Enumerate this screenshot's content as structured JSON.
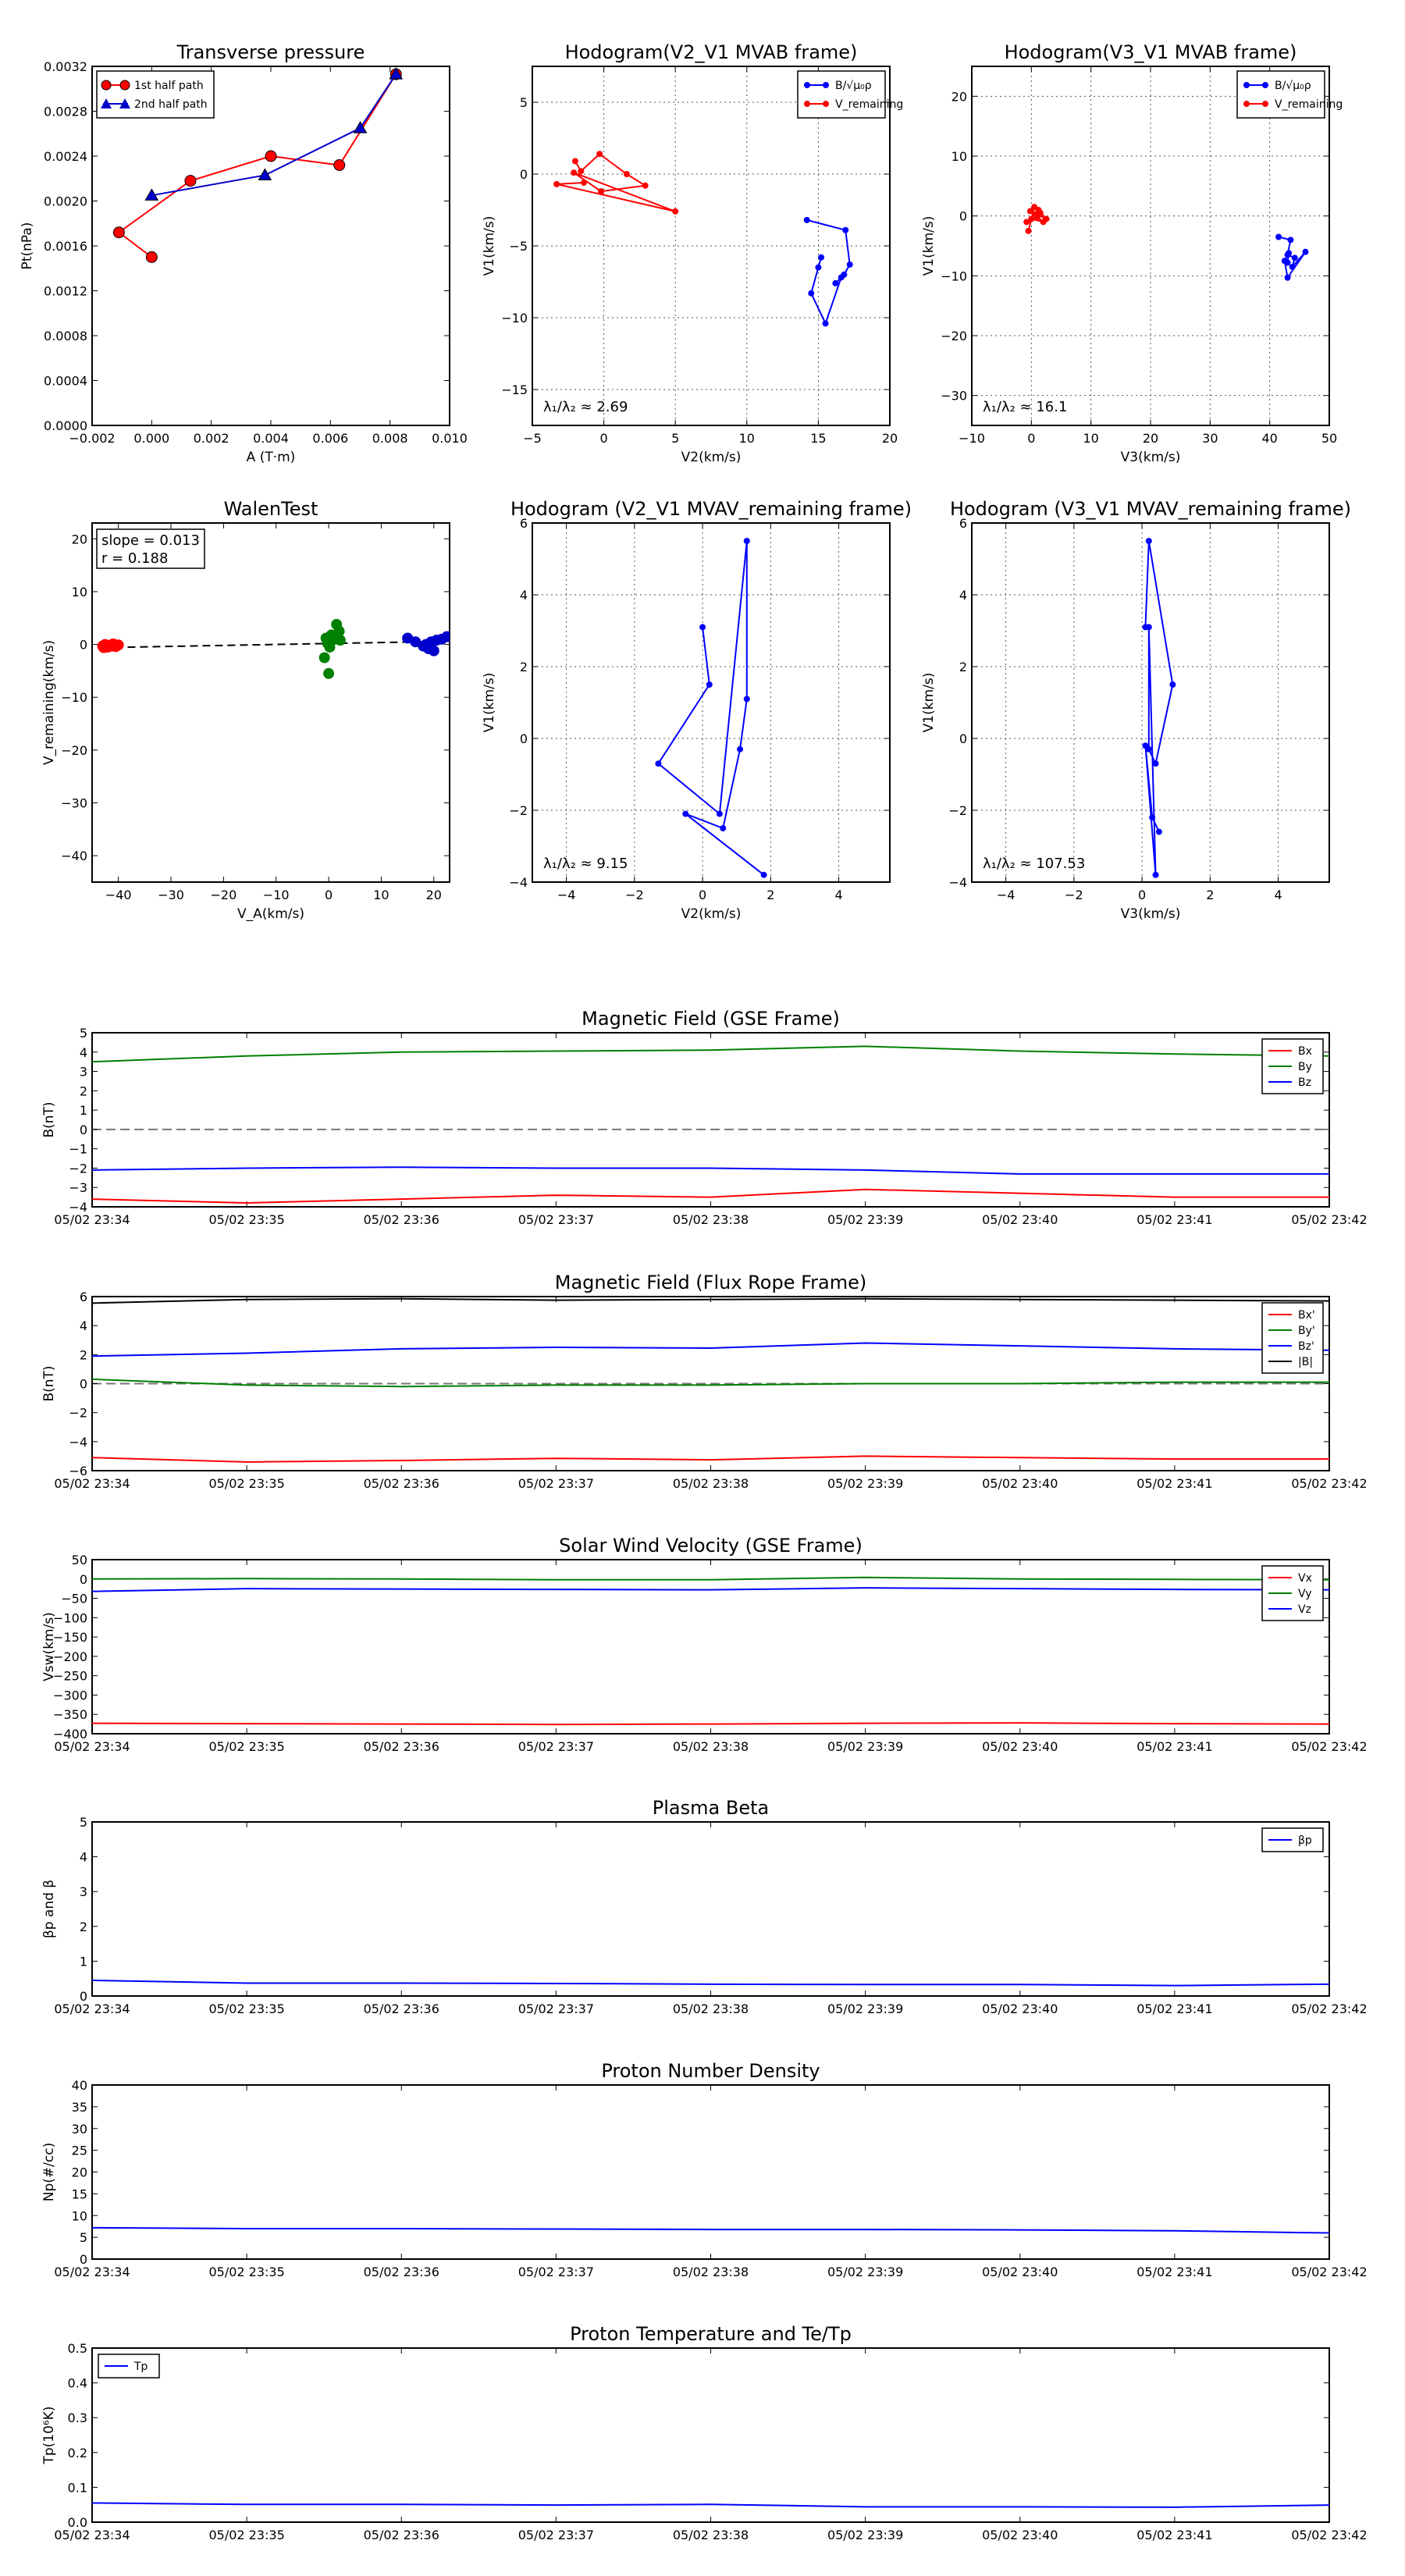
{
  "chart_data": [
    {
      "id": "tp",
      "type": "scatter",
      "title": "Transverse pressure",
      "xlabel": "A (T·m)",
      "ylabel": "Pt(nPa)",
      "xlim": [
        -0.002,
        0.01
      ],
      "ylim": [
        0,
        0.0032
      ],
      "xticks": [
        -0.002,
        0,
        0.002,
        0.004,
        0.006,
        0.008,
        0.01
      ],
      "xticklabels": [
        "−0.002",
        "0.000",
        "0.002",
        "0.004",
        "0.006",
        "0.008",
        "0.010"
      ],
      "yticks": [
        0,
        0.0004,
        0.0008,
        0.0012,
        0.0016,
        0.002,
        0.0024,
        0.0028,
        0.0032
      ],
      "yticklabels": [
        "0.0000",
        "0.0004",
        "0.0008",
        "0.0012",
        "0.0016",
        "0.0020",
        "0.0024",
        "0.0028",
        "0.0032"
      ],
      "legend": "top-left",
      "grid": false,
      "series": [
        {
          "name": "1st half path",
          "color": "#ff0000",
          "marker": "circle",
          "x": [
            0.0,
            -0.0011,
            0.0013,
            0.004,
            0.0063,
            0.0082
          ],
          "y": [
            0.0015,
            0.00172,
            0.00218,
            0.0024,
            0.00232,
            0.00313
          ]
        },
        {
          "name": "2nd half path",
          "color": "#0000cc",
          "marker": "triangle",
          "x": [
            0.0082,
            0.007,
            0.0038,
            0.0
          ],
          "y": [
            0.00313,
            0.00265,
            0.00223,
            0.00205
          ]
        }
      ]
    },
    {
      "id": "h1",
      "type": "line",
      "title": "Hodogram(V2_V1 MVAB frame)",
      "xlabel": "V2(km/s)",
      "ylabel": "V1(km/s)",
      "xlim": [
        -5,
        20
      ],
      "ylim": [
        -17.5,
        7.5
      ],
      "xticks": [
        -5,
        0,
        5,
        10,
        15,
        20
      ],
      "yticks": [
        -15,
        -10,
        -5,
        0,
        5
      ],
      "grid": true,
      "legend": "top-right",
      "annotation": "λ₁/λ₂ ≈ 2.69",
      "series": [
        {
          "name": "B/√μ₀ρ",
          "color": "#0000ff",
          "x": [
            14.2,
            16.9,
            17.2,
            16.8,
            16.2,
            16.6,
            15.5,
            14.5,
            15.0,
            15.2
          ],
          "y": [
            -3.2,
            -3.9,
            -6.3,
            -7.0,
            -7.6,
            -7.2,
            -10.4,
            -8.3,
            -6.5,
            -5.8
          ]
        },
        {
          "name": "V_remaining",
          "color": "#ff0000",
          "x": [
            -2.0,
            -1.6,
            -0.3,
            1.6,
            2.9,
            -0.2,
            -2.1,
            5.0,
            -3.3,
            -1.4
          ],
          "y": [
            0.9,
            0.2,
            1.4,
            0.0,
            -0.8,
            -1.2,
            0.1,
            -2.6,
            -0.7,
            -0.6
          ]
        }
      ]
    },
    {
      "id": "h2",
      "type": "line",
      "title": "Hodogram(V3_V1 MVAB frame)",
      "xlabel": "V3(km/s)",
      "ylabel": "V1(km/s)",
      "xlim": [
        -10,
        50
      ],
      "ylim": [
        -35,
        25
      ],
      "xticks": [
        -10,
        0,
        10,
        20,
        30,
        40,
        50
      ],
      "yticks": [
        -30,
        -20,
        -10,
        0,
        10,
        20
      ],
      "grid": true,
      "legend": "top-right",
      "annotation": "λ₁/λ₂ ≈ 16.1",
      "series": [
        {
          "name": "B/√μ₀ρ",
          "color": "#0000ff",
          "x": [
            41.5,
            43.5,
            43.0,
            44.2,
            43.8,
            46.0,
            43.0,
            42.5,
            43.2,
            43.0
          ],
          "y": [
            -3.5,
            -4.0,
            -6.5,
            -7.0,
            -8.5,
            -6.0,
            -10.3,
            -7.5,
            -6.2,
            -7.8
          ]
        },
        {
          "name": "V_remaining",
          "color": "#ff0000",
          "x": [
            -0.5,
            0.5,
            1.5,
            0.0,
            2.0,
            1.0,
            -0.2,
            0.8,
            2.5,
            1.2,
            -0.8
          ],
          "y": [
            -2.5,
            1.5,
            0.5,
            -0.5,
            -1.0,
            -0.2,
            0.8,
            0.3,
            -0.5,
            1.0,
            -1.0
          ]
        }
      ]
    },
    {
      "id": "walen",
      "type": "scatter",
      "title": "WalenTest",
      "xlabel": "V_A(km/s)",
      "ylabel": "V_remaining(km/s)",
      "xlim": [
        -45,
        23
      ],
      "ylim": [
        -45,
        23
      ],
      "xticks": [
        -40,
        -30,
        -20,
        -10,
        0,
        10,
        20
      ],
      "yticks": [
        -40,
        -30,
        -20,
        -10,
        0,
        10,
        20
      ],
      "grid": false,
      "slope_text": "slope = 0.013",
      "r_text": "r = 0.188",
      "fit": {
        "x": [
          -43,
          23
        ],
        "y": [
          -0.6,
          0.6
        ]
      },
      "series": [
        {
          "name": "",
          "color": "#ff0000",
          "x": [
            -43,
            -42.5,
            -42,
            -41.5,
            -41,
            -40.5,
            -40,
            -42.8,
            -41.2,
            -40.2
          ],
          "y": [
            -0.3,
            0.0,
            -0.5,
            -0.2,
            0.1,
            -0.4,
            -0.1,
            -0.6,
            -0.3,
            -0.2
          ]
        },
        {
          "name": "",
          "color": "#008000",
          "x": [
            1.5,
            2.0,
            0.5,
            1.2,
            -0.5,
            -0.2,
            0.2,
            2.2,
            -0.8,
            0.0
          ],
          "y": [
            3.8,
            2.5,
            1.8,
            1.0,
            1.2,
            0.2,
            -0.5,
            0.8,
            -2.5,
            -5.5
          ]
        },
        {
          "name": "",
          "color": "#0000cc",
          "x": [
            15,
            16.5,
            18,
            18.5,
            19.5,
            20.5,
            19,
            21.5,
            22.5,
            20
          ],
          "y": [
            1.2,
            0.5,
            -0.3,
            0.0,
            0.5,
            0.8,
            -0.8,
            1.0,
            1.5,
            -1.2
          ]
        }
      ]
    },
    {
      "id": "h3",
      "type": "line",
      "title": "Hodogram (V2_V1 MVAV_remaining frame)",
      "xlabel": "V2(km/s)",
      "ylabel": "V1(km/s)",
      "xlim": [
        -5,
        5.5
      ],
      "ylim": [
        -4,
        6
      ],
      "xticks": [
        -4,
        -2,
        0,
        2,
        4
      ],
      "yticks": [
        -4,
        -2,
        0,
        2,
        4,
        6
      ],
      "grid": true,
      "annotation": "λ₁/λ₂ ≈ 9.15",
      "series": [
        {
          "name": "",
          "color": "#0000ff",
          "x": [
            0.0,
            0.2,
            -1.3,
            0.5,
            1.3,
            1.3,
            1.1,
            0.6,
            -0.5,
            1.8
          ],
          "y": [
            3.1,
            1.5,
            -0.7,
            -2.1,
            5.5,
            1.1,
            -0.3,
            -2.5,
            -2.1,
            -3.8
          ]
        }
      ]
    },
    {
      "id": "h4",
      "type": "line",
      "title": "Hodogram (V3_V1 MVAV_remaining frame)",
      "xlabel": "V3(km/s)",
      "ylabel": "V1(km/s)",
      "xlim": [
        -5,
        5.5
      ],
      "ylim": [
        -4,
        6
      ],
      "xticks": [
        -4,
        -2,
        0,
        2,
        4
      ],
      "yticks": [
        -4,
        -2,
        0,
        2,
        4,
        6
      ],
      "grid": true,
      "annotation": "λ₁/λ₂ ≈ 107.53",
      "series": [
        {
          "name": "",
          "color": "#0000ff",
          "x": [
            0.1,
            0.2,
            0.9,
            0.4,
            0.2,
            0.2,
            0.4,
            0.1,
            0.3,
            0.5
          ],
          "y": [
            3.1,
            5.5,
            1.5,
            -0.7,
            -0.3,
            3.1,
            -3.8,
            -0.2,
            -2.2,
            -2.6
          ]
        }
      ]
    },
    {
      "id": "ts1",
      "type": "line",
      "title": "Magnetic Field (GSE Frame)",
      "xlabel": "",
      "ylabel": "B(nT)",
      "ylim": [
        -4,
        5
      ],
      "yticks": [
        -4,
        -3,
        -2,
        -1,
        0,
        1,
        2,
        3,
        4,
        5
      ],
      "categories": [
        "05/02 23:34",
        "05/02 23:35",
        "05/02 23:36",
        "05/02 23:37",
        "05/02 23:38",
        "05/02 23:39",
        "05/02 23:40",
        "05/02 23:41",
        "05/02 23:42"
      ],
      "legend": "top-right",
      "zero_line": true,
      "series": [
        {
          "name": "Bx",
          "color": "#ff0000",
          "values": [
            -3.6,
            -3.8,
            -3.6,
            -3.4,
            -3.5,
            -3.1,
            -3.3,
            -3.5,
            -3.5
          ]
        },
        {
          "name": "By",
          "color": "#008000",
          "values": [
            3.5,
            3.8,
            4.0,
            4.05,
            4.1,
            4.3,
            4.05,
            3.9,
            3.8
          ]
        },
        {
          "name": "Bz",
          "color": "#0000ff",
          "values": [
            -2.1,
            -2.0,
            -1.95,
            -2.0,
            -2.0,
            -2.1,
            -2.3,
            -2.3,
            -2.3
          ]
        }
      ]
    },
    {
      "id": "ts2",
      "type": "line",
      "title": "Magnetic Field (Flux Rope Frame)",
      "xlabel": "",
      "ylabel": "B(nT)",
      "ylim": [
        -6,
        6
      ],
      "yticks": [
        -6,
        -4,
        -2,
        0,
        2,
        4,
        6
      ],
      "categories": [
        "05/02 23:34",
        "05/02 23:35",
        "05/02 23:36",
        "05/02 23:37",
        "05/02 23:38",
        "05/02 23:39",
        "05/02 23:40",
        "05/02 23:41",
        "05/02 23:42"
      ],
      "legend": "top-right",
      "zero_line": true,
      "series": [
        {
          "name": "Bx'",
          "color": "#ff0000",
          "values": [
            -5.1,
            -5.4,
            -5.3,
            -5.15,
            -5.25,
            -5.0,
            -5.1,
            -5.2,
            -5.2
          ]
        },
        {
          "name": "By'",
          "color": "#008000",
          "values": [
            0.3,
            -0.1,
            -0.2,
            -0.1,
            -0.1,
            0.0,
            0.0,
            0.1,
            0.1
          ]
        },
        {
          "name": "Bz'",
          "color": "#0000ff",
          "values": [
            1.9,
            2.1,
            2.4,
            2.5,
            2.45,
            2.8,
            2.6,
            2.4,
            2.3
          ]
        },
        {
          "name": "|B|",
          "color": "#000000",
          "values": [
            5.55,
            5.8,
            5.85,
            5.75,
            5.8,
            5.85,
            5.8,
            5.75,
            5.7
          ]
        }
      ]
    },
    {
      "id": "ts3",
      "type": "line",
      "title": "Solar Wind Velocity (GSE Frame)",
      "xlabel": "",
      "ylabel": "Vsw(km/s)",
      "ylim": [
        -400,
        50
      ],
      "yticks": [
        -400,
        -350,
        -300,
        -250,
        -200,
        -150,
        -100,
        -50,
        0,
        50
      ],
      "categories": [
        "05/02 23:34",
        "05/02 23:35",
        "05/02 23:36",
        "05/02 23:37",
        "05/02 23:38",
        "05/02 23:39",
        "05/02 23:40",
        "05/02 23:41",
        "05/02 23:42"
      ],
      "legend": "top-right",
      "series": [
        {
          "name": "Vx",
          "color": "#ff0000",
          "values": [
            -373,
            -374,
            -375,
            -376,
            -375,
            -373,
            -372,
            -374,
            -375
          ]
        },
        {
          "name": "Vy",
          "color": "#008000",
          "values": [
            0,
            1,
            0,
            -2,
            -2,
            4,
            0,
            -1,
            -2
          ]
        },
        {
          "name": "Vz",
          "color": "#0000ff",
          "values": [
            -32,
            -25,
            -26,
            -27,
            -28,
            -23,
            -25,
            -27,
            -28
          ]
        }
      ]
    },
    {
      "id": "ts4",
      "type": "line",
      "title": "Plasma Beta",
      "xlabel": "",
      "ylabel": "βp and β",
      "ylim": [
        0,
        5
      ],
      "yticks": [
        0,
        1,
        2,
        3,
        4,
        5
      ],
      "categories": [
        "05/02 23:34",
        "05/02 23:35",
        "05/02 23:36",
        "05/02 23:37",
        "05/02 23:38",
        "05/02 23:39",
        "05/02 23:40",
        "05/02 23:41",
        "05/02 23:42"
      ],
      "legend": "top-right",
      "series": [
        {
          "name": "βp",
          "color": "#0000ff",
          "values": [
            0.45,
            0.37,
            0.37,
            0.36,
            0.34,
            0.33,
            0.33,
            0.3,
            0.34
          ]
        }
      ]
    },
    {
      "id": "ts5",
      "type": "line",
      "title": "Proton Number Density",
      "xlabel": "",
      "ylabel": "Np(#/cc)",
      "ylim": [
        0,
        40
      ],
      "yticks": [
        0,
        5,
        10,
        15,
        20,
        25,
        30,
        35,
        40
      ],
      "categories": [
        "05/02 23:34",
        "05/02 23:35",
        "05/02 23:36",
        "05/02 23:37",
        "05/02 23:38",
        "05/02 23:39",
        "05/02 23:40",
        "05/02 23:41",
        "05/02 23:42"
      ],
      "series": [
        {
          "name": "",
          "color": "#0000ff",
          "values": [
            7.2,
            7.0,
            7.0,
            6.9,
            6.8,
            6.8,
            6.7,
            6.5,
            6.0
          ]
        }
      ]
    },
    {
      "id": "ts6",
      "type": "line",
      "title": "Proton Temperature and Te/Tp",
      "xlabel": "",
      "ylabel": "Tp(10⁶K)",
      "ylim": [
        0,
        0.5
      ],
      "yticks": [
        0,
        0.1,
        0.2,
        0.3,
        0.4,
        0.5
      ],
      "categories": [
        "05/02 23:34",
        "05/02 23:35",
        "05/02 23:36",
        "05/02 23:37",
        "05/02 23:38",
        "05/02 23:39",
        "05/02 23:40",
        "05/02 23:41",
        "05/02 23:42"
      ],
      "legend": "top-left",
      "series": [
        {
          "name": "Tp",
          "color": "#0000ff",
          "values": [
            0.055,
            0.051,
            0.051,
            0.049,
            0.051,
            0.044,
            0.044,
            0.043,
            0.049
          ]
        }
      ]
    }
  ]
}
